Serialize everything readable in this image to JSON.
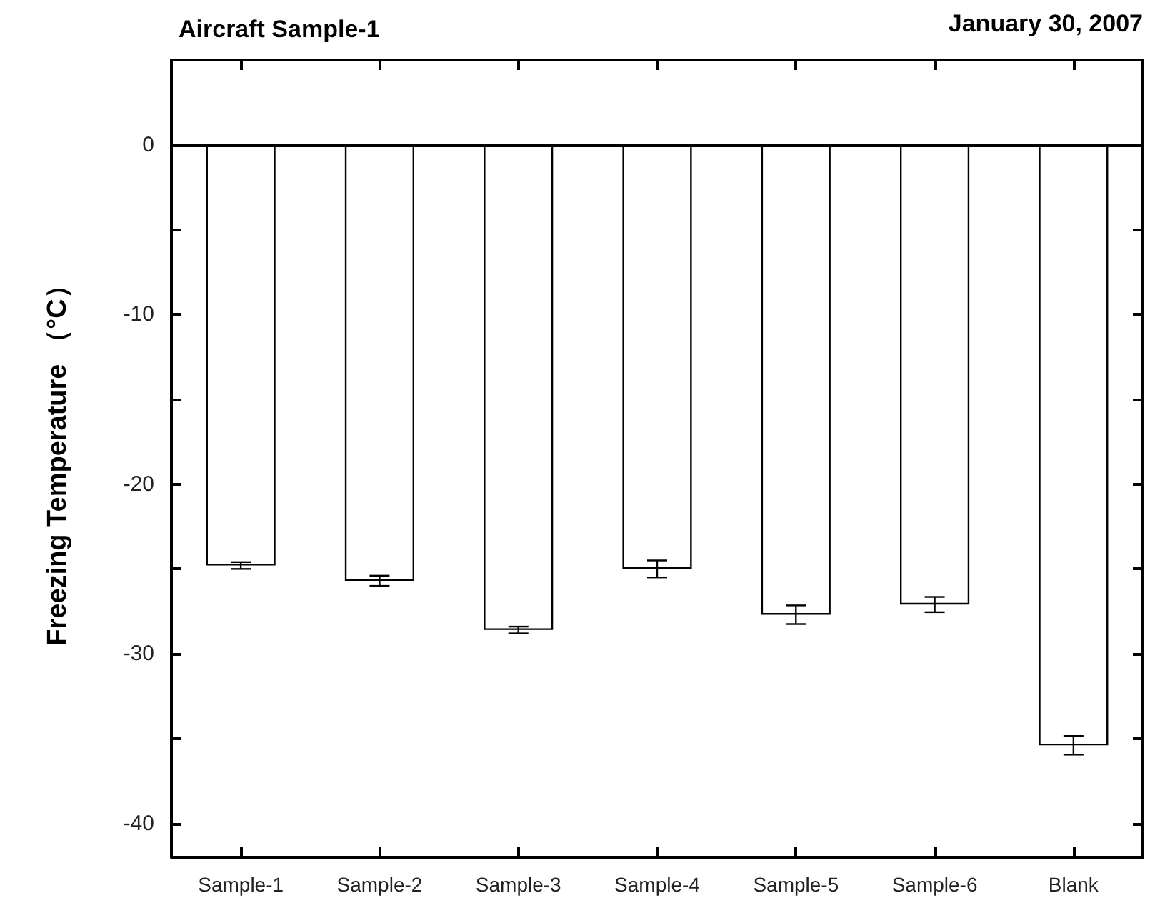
{
  "chart_data": {
    "type": "bar",
    "title": "Aircraft Sample-1",
    "annotations": [
      "January 30, 2007"
    ],
    "ylabel": "Freezing Temperature （°C）",
    "categories": [
      "Sample-1",
      "Sample-2",
      "Sample-3",
      "Sample-4",
      "Sample-5",
      "Sample-6",
      "Blank"
    ],
    "values": [
      -24.8,
      -25.7,
      -28.6,
      -25.0,
      -27.7,
      -27.1,
      -35.4
    ],
    "errors": [
      0.2,
      0.3,
      0.2,
      0.5,
      0.55,
      0.45,
      0.55
    ],
    "color": "#ffffff",
    "ylim": [
      -42,
      5
    ],
    "yticks": [
      -40,
      {
        "value": -35,
        "label": null
      },
      -30,
      {
        "value": -25,
        "label": null
      },
      -20,
      {
        "value": -15,
        "label": null
      },
      -10,
      {
        "value": -5,
        "label": null
      },
      0
    ],
    "ref_lines": [
      {
        "axis": "y",
        "value": 0,
        "color": "#000000"
      }
    ],
    "grid": false
  }
}
